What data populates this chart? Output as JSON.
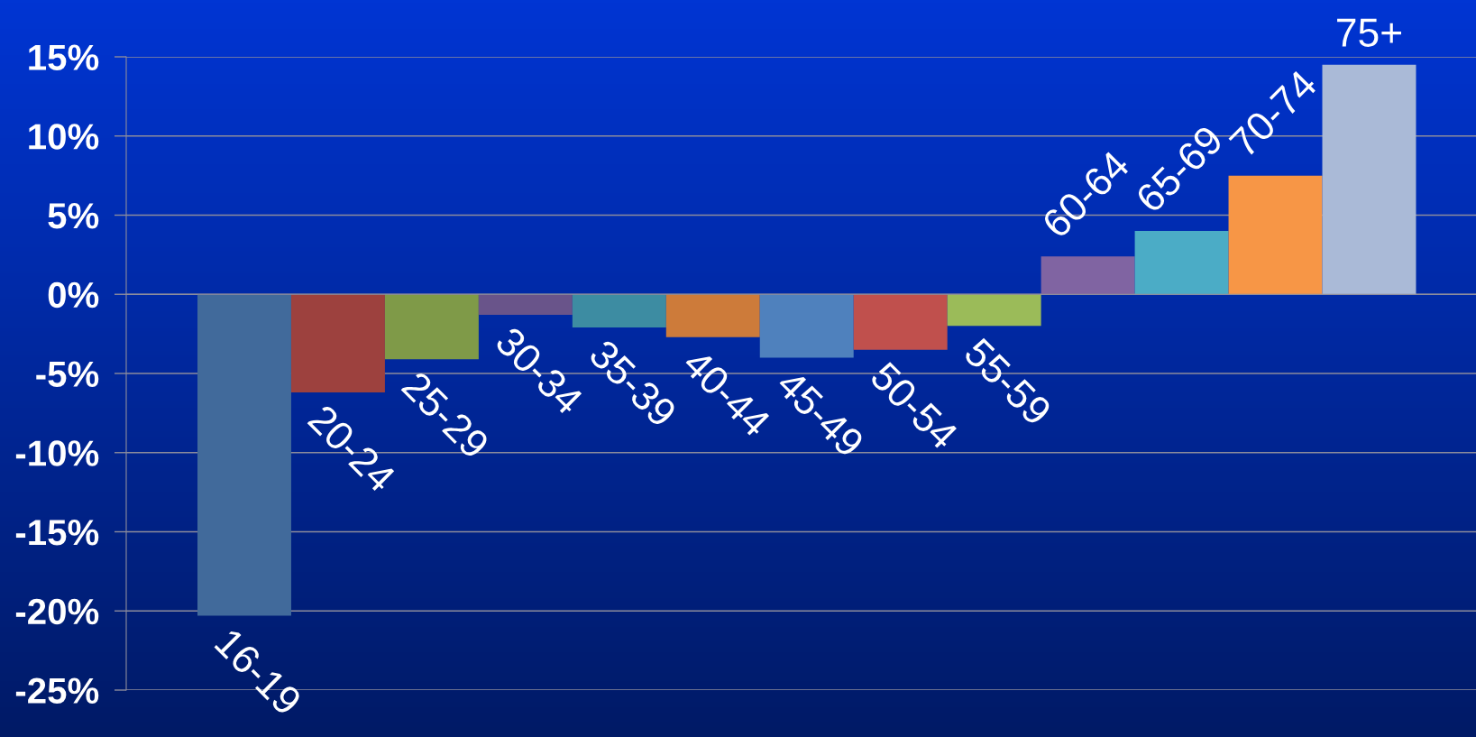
{
  "chart_data": {
    "type": "bar",
    "categories": [
      "16-19",
      "20-24",
      "25-29",
      "30-34",
      "35-39",
      "40-44",
      "45-49",
      "50-54",
      "55-59",
      "60-64",
      "65-69",
      "70-74",
      "75+"
    ],
    "values": [
      -20.3,
      -6.2,
      -4.1,
      -1.3,
      -2.1,
      -2.7,
      -4.0,
      -3.5,
      -2.0,
      2.4,
      4.0,
      7.5,
      14.5
    ],
    "colors": [
      "#416a9b",
      "#9d413e",
      "#7f9a48",
      "#69548a",
      "#3d8ca2",
      "#cd7b3a",
      "#4f81bd",
      "#c0504d",
      "#9bbb59",
      "#8064a2",
      "#4bacc6",
      "#f79646",
      "#aabad7"
    ],
    "ylim": [
      -25,
      15
    ],
    "yticks": [
      {
        "value": -25,
        "label": "-25%"
      },
      {
        "value": -20,
        "label": "-20%"
      },
      {
        "value": -15,
        "label": "-15%"
      },
      {
        "value": -10,
        "label": "-10%"
      },
      {
        "value": -5,
        "label": "-5%"
      },
      {
        "value": 0,
        "label": "0%"
      },
      {
        "value": 5,
        "label": "5%"
      },
      {
        "value": 10,
        "label": "10%"
      },
      {
        "value": 15,
        "label": "15%"
      }
    ],
    "grid": "y"
  }
}
